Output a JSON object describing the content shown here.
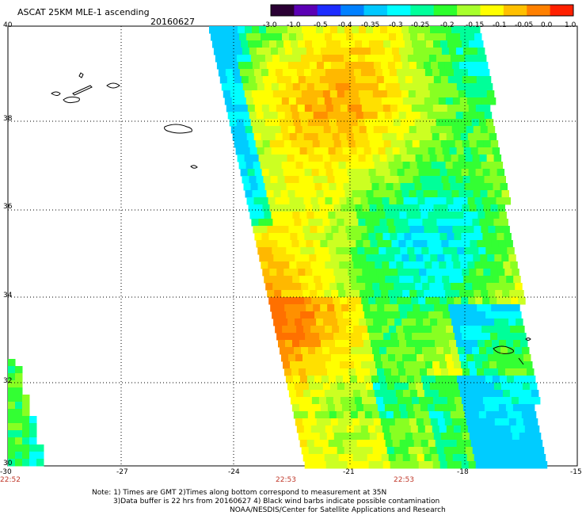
{
  "header": {
    "title": "ASCAT 25KM MLE-1 ascending",
    "date": "20160627"
  },
  "colorbar": {
    "labels": [
      "-3.0",
      "-1.0",
      "-0.5",
      "-0.4",
      "-0.35",
      "-0.3",
      "-0.25",
      "-0.2",
      "-0.15",
      "-0.1",
      "-0.05",
      "0.0",
      "1.0"
    ],
    "colors": [
      "#2a0033",
      "#5b00b4",
      "#1d2cff",
      "#0080ff",
      "#00c8ff",
      "#00ffff",
      "#00ff9a",
      "#2cff2c",
      "#a8ff2c",
      "#ffff00",
      "#ffc000",
      "#ff8000",
      "#ff2000"
    ]
  },
  "axes": {
    "lat_labels": [
      "40",
      "38",
      "36",
      "34",
      "32",
      "30"
    ],
    "lon_labels": [
      "-30",
      "-27",
      "-24",
      "-21",
      "-18",
      "-15"
    ]
  },
  "times": [
    "22:52",
    "22:53",
    "22:53"
  ],
  "notes": [
    "Note: 1) Times are GMT 2)Times along bottom correspond to measurement at 35N",
    "3)Data buffer is 22 hrs from 20160627 4) Black wind barbs indicate possible contamination",
    "NOAA/NESDIS/Center for Satellite Applications and Research"
  ]
}
